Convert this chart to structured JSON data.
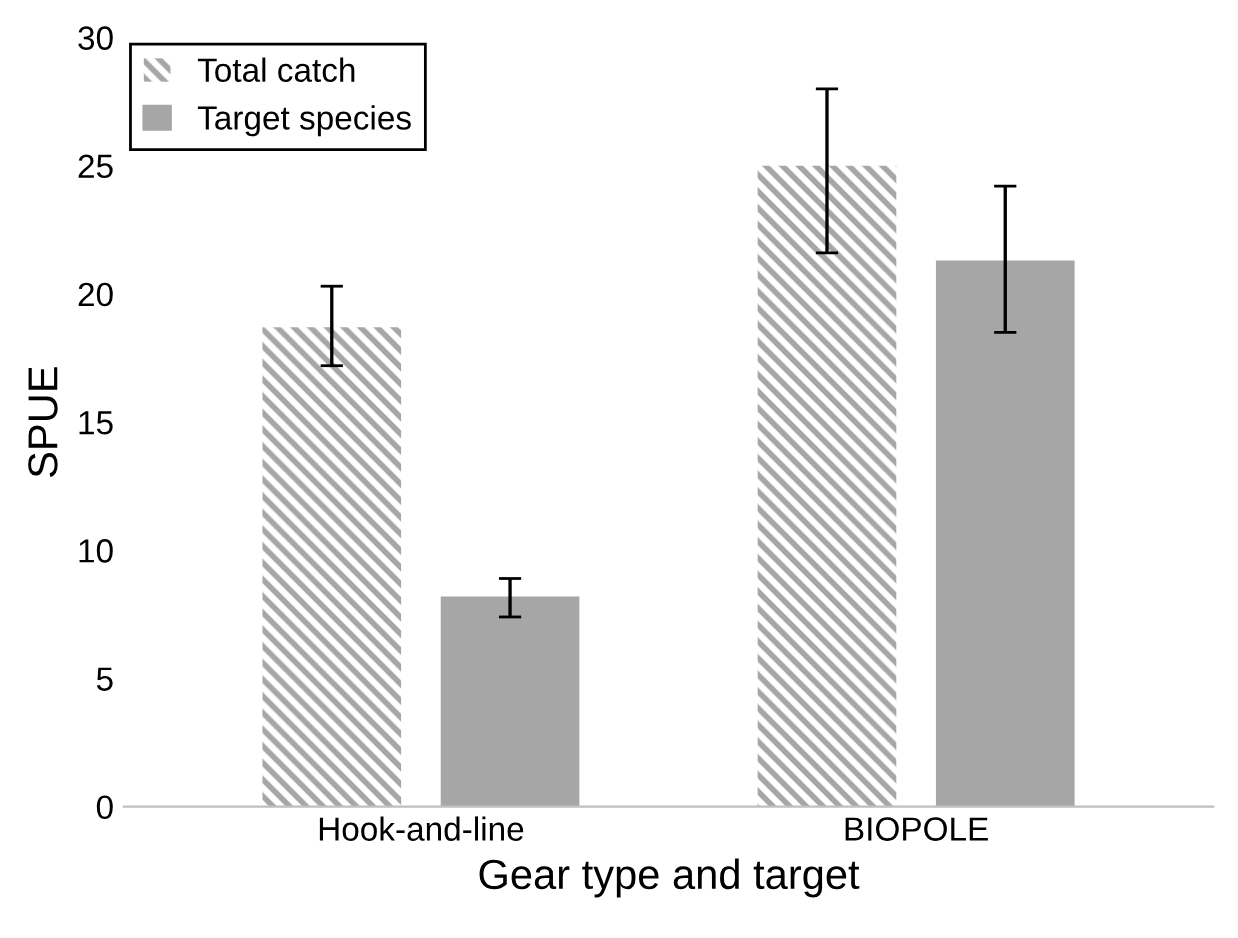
{
  "chart_data": {
    "type": "bar",
    "xlabel": "Gear type and target",
    "ylabel": "SPUE",
    "categories": [
      "Hook-and-line",
      "BIOPOLE"
    ],
    "series": [
      {
        "name": "Total catch",
        "color": "#a6a6a6",
        "values": [
          18.7,
          25.0
        ],
        "errors": [
          [
            17.2,
            20.3
          ],
          [
            21.6,
            28.0
          ]
        ]
      },
      {
        "name": "Target species",
        "color": "#a6a6a6",
        "values": [
          8.2,
          21.3
        ],
        "errors": [
          [
            7.4,
            8.9
          ],
          [
            18.5,
            24.2
          ]
        ]
      }
    ],
    "ylim": [
      0,
      30
    ],
    "yticks": [
      0,
      5,
      10,
      15,
      20,
      25,
      30
    ],
    "grid": false,
    "legend": "top left"
  }
}
